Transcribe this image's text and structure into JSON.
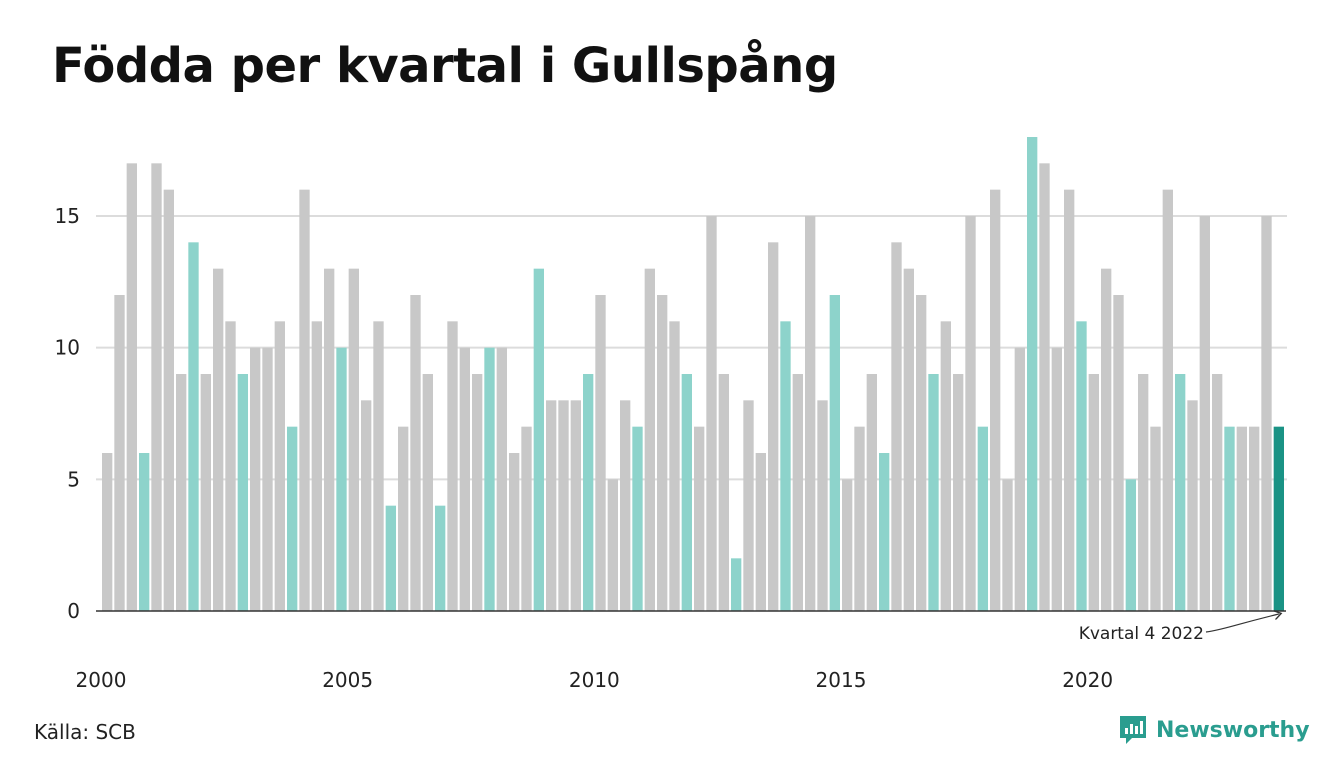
{
  "title": "Födda per kvartal i Gullspång",
  "source": "Källa: SCB",
  "brand": {
    "name": "Newsworthy",
    "icon": "newsworthy-logo-icon"
  },
  "colors": {
    "default_bar": "#c8c8c8",
    "quarter4_bar": "#8dd3cb",
    "highlight_bar": "#1a9385",
    "grid": "#dcdcdc",
    "axis": "#333333",
    "brand": "#2a9d8f"
  },
  "chart_data": {
    "type": "bar",
    "title": "Födda per kvartal i Gullspång",
    "xlabel": "",
    "ylabel": "",
    "ylim": [
      0,
      18
    ],
    "yticks": [
      0,
      5,
      10,
      15
    ],
    "xtick_labels": [
      "2000",
      "2005",
      "2010",
      "2015",
      "2020"
    ],
    "grid": true,
    "series": [
      {
        "start_year": 2000,
        "values": [
          6,
          12,
          17,
          6,
          17,
          16,
          9,
          14,
          9,
          13,
          11,
          9,
          10,
          10,
          11,
          7,
          16,
          11,
          13,
          10,
          13,
          8,
          11,
          4,
          7,
          12,
          9,
          4,
          11,
          10,
          9,
          10,
          10,
          6,
          7,
          13,
          8,
          8,
          8,
          9,
          12,
          5,
          8,
          7,
          13,
          12,
          11,
          9,
          7,
          15,
          9,
          2,
          8,
          6,
          14,
          11,
          9,
          15,
          8,
          12,
          5,
          7,
          9,
          6,
          14,
          13,
          12,
          9,
          11,
          9,
          15,
          7,
          16,
          5,
          10,
          18,
          17,
          10,
          16,
          11,
          9,
          13,
          12,
          5,
          9,
          7,
          16,
          9,
          8,
          15,
          9,
          7,
          7,
          7,
          15,
          7
        ]
      }
    ],
    "highlight_quarter": 4,
    "annotation": {
      "text": "Kvartal 4 2022"
    }
  }
}
